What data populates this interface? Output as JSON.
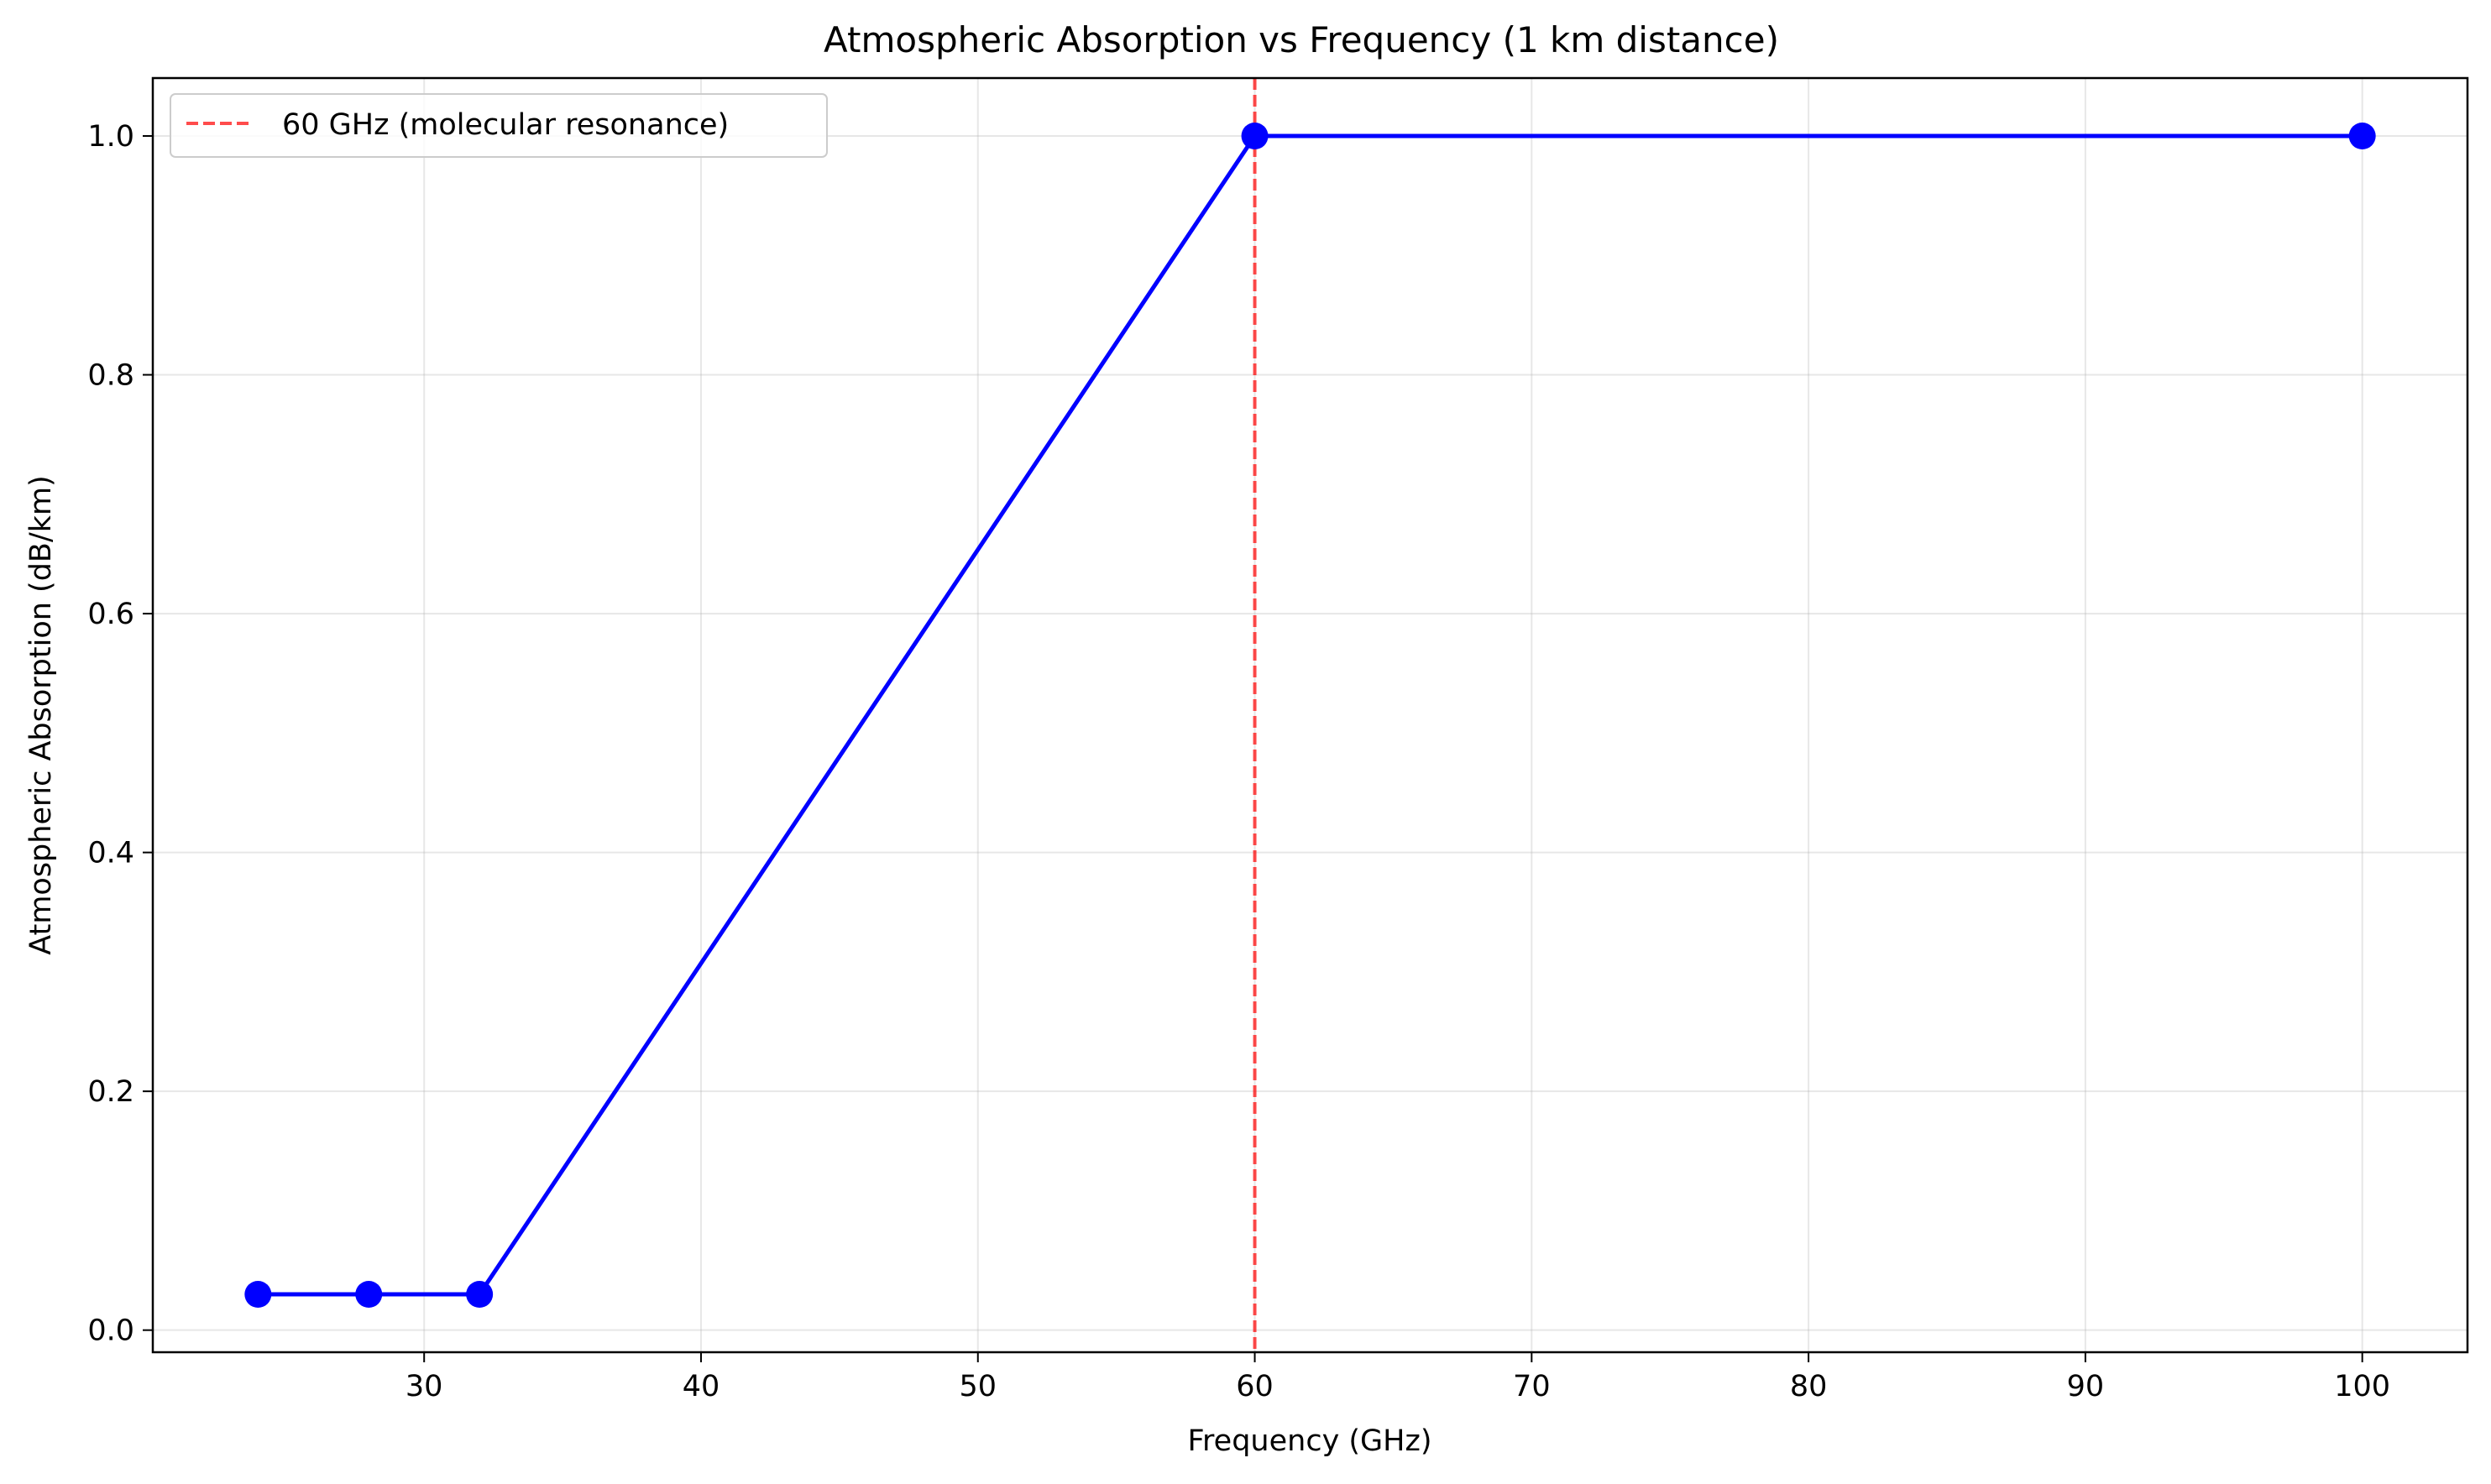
{
  "chart_data": {
    "type": "line",
    "title": "Atmospheric Absorption vs Frequency (1 km distance)",
    "xlabel": "Frequency (GHz)",
    "ylabel": "Atmospheric Absorption (dB/km)",
    "xlim": [
      20.2,
      103.8
    ],
    "ylim": [
      -0.0185,
      1.0485
    ],
    "xticks": [
      30,
      40,
      50,
      60,
      70,
      80,
      90,
      100
    ],
    "xtick_labels": [
      "30",
      "40",
      "50",
      "60",
      "70",
      "80",
      "90",
      "100"
    ],
    "yticks": [
      0.0,
      0.2,
      0.4,
      0.6,
      0.8,
      1.0
    ],
    "ytick_labels": [
      "0.0",
      "0.2",
      "0.4",
      "0.6",
      "0.8",
      "1.0"
    ],
    "grid": true,
    "series": [
      {
        "x": [
          24,
          28,
          32,
          60,
          100
        ],
        "y": [
          0.03,
          0.03,
          0.03,
          1.0,
          1.0
        ],
        "color": "#0000ff",
        "marker": "circle"
      }
    ],
    "reference_lines": [
      {
        "orientation": "vertical",
        "x": 60,
        "label": "60 GHz (molecular resonance)",
        "color": "#ff0000",
        "style": "dashed"
      }
    ],
    "legend": {
      "position": "top-left",
      "entries": [
        "60 GHz (molecular resonance)"
      ]
    }
  }
}
